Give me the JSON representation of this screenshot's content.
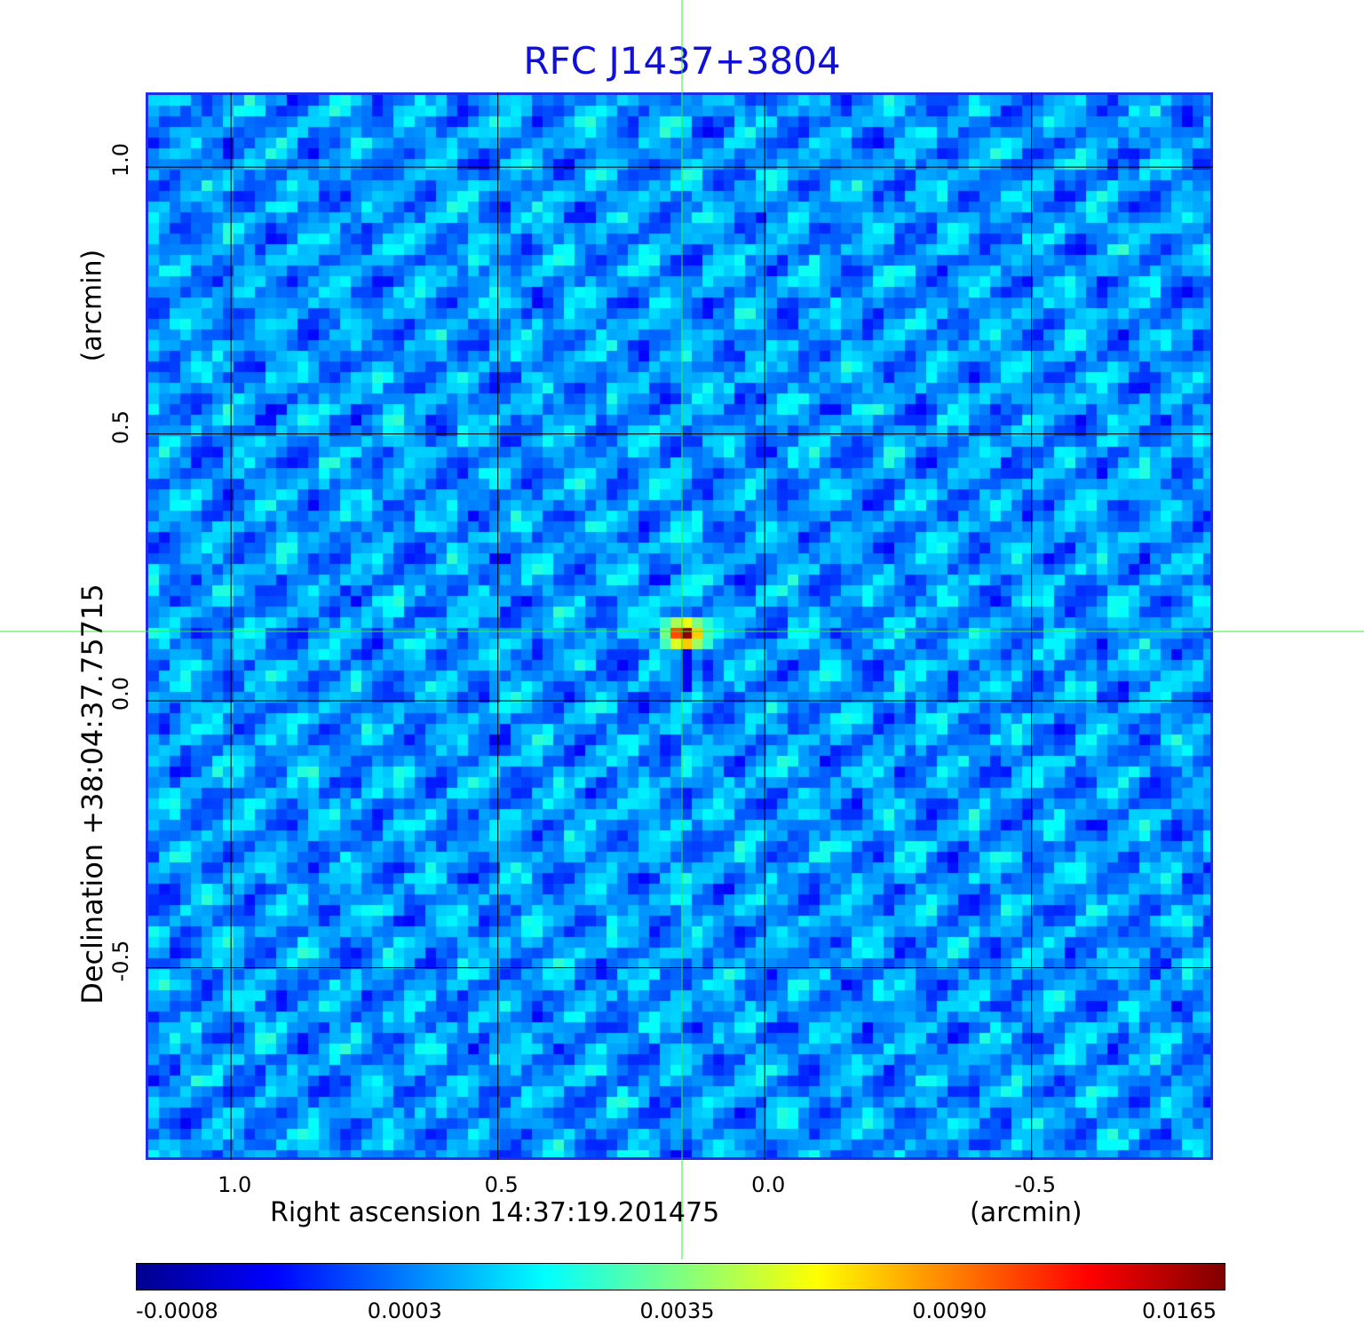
{
  "chart_data": {
    "type": "heatmap",
    "title": "RFC J1437+3804",
    "xlabel": "Right ascension  14:37:19.201475",
    "xunit": "(arcmin)",
    "ylabel": "Declination  +38:04:37.75715",
    "yunit": "(arcmin)",
    "xlim": [
      1.16,
      -0.84
    ],
    "ylim": [
      -0.86,
      1.14
    ],
    "x_ticks": [
      {
        "value": 1.0,
        "label": "1.0"
      },
      {
        "value": 0.5,
        "label": "0.5"
      },
      {
        "value": 0.0,
        "label": "0.0"
      },
      {
        "value": -0.5,
        "label": "-0.5"
      }
    ],
    "y_ticks": [
      {
        "value": 1.0,
        "label": "1.0"
      },
      {
        "value": 0.5,
        "label": "0.5"
      },
      {
        "value": 0.0,
        "label": "0.0"
      },
      {
        "value": -0.5,
        "label": "-0.5"
      }
    ],
    "grid": true,
    "crosshair": {
      "x": 0.155,
      "y": 0.13,
      "color": "#33ee33"
    },
    "peak": {
      "x": 0.155,
      "y": 0.13,
      "value": 0.0165
    },
    "colorbar": {
      "ticks": [
        "-0.0008",
        "0.0003",
        "0.0035",
        "0.0090",
        "0.0165"
      ],
      "colormap": "jet",
      "colors": [
        "#00008f",
        "#0000ff",
        "#0080ff",
        "#00ffff",
        "#80ff80",
        "#ffff00",
        "#ff8000",
        "#ff0000",
        "#800000"
      ]
    },
    "title_color": "#1010d8"
  }
}
